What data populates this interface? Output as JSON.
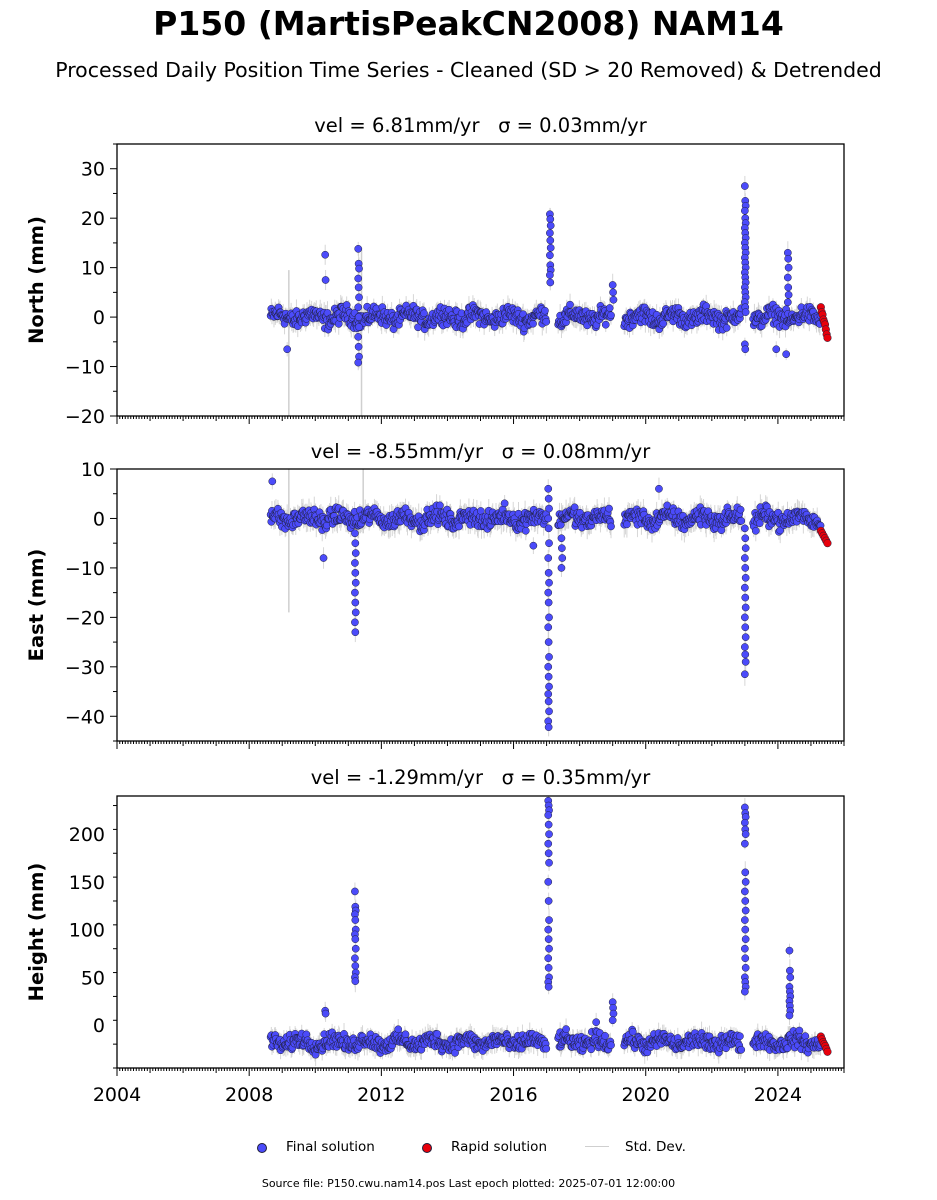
{
  "page": {
    "title": "P150 (MartisPeakCN2008) NAM14",
    "subtitle": "Processed Daily Position Time Series - Cleaned (SD > 20 Removed) & Detrended",
    "source": "Source file: P150.cwu.nam14.pos  Last epoch plotted: 2025-07-01 12:00:00"
  },
  "legend": {
    "final": "Final solution",
    "rapid": "Rapid solution",
    "std": "Std. Dev."
  },
  "colors": {
    "final": "#4b4bfa",
    "rapid": "#e8000b",
    "std": "#cfcfcf",
    "edge": "#1f1f3a"
  },
  "chart_data": [
    {
      "type": "scatter",
      "title": "vel = 6.81mm/yr   σ = 0.03mm/yr",
      "ylabel": "North (mm)",
      "xlim": [
        2004.0,
        2026.0
      ],
      "ylim": [
        -20,
        35
      ],
      "yticks": [
        -20,
        -10,
        0,
        10,
        20,
        30
      ],
      "xticks": [
        2004,
        2008,
        2012,
        2016,
        2020,
        2024
      ],
      "segments": [
        [
          2008.65,
          2017.0
        ],
        [
          2017.35,
          2018.95
        ],
        [
          2019.35,
          2022.9
        ],
        [
          2023.25,
          2025.3
        ]
      ],
      "baseline": 0,
      "noise": 1.5,
      "err": 1.6,
      "events": [
        {
          "x": 2009.15,
          "values": [
            -6.5
          ]
        },
        {
          "x": 2010.3,
          "values": [
            12.6,
            7.5
          ]
        },
        {
          "x": 2011.3,
          "values": [
            13.8,
            10.8,
            9.8,
            7.8,
            6,
            4,
            2,
            0,
            -2,
            -4,
            -6,
            -8,
            -9.2
          ]
        },
        {
          "x": 2017.1,
          "values": [
            20.8,
            19.8,
            18.5,
            17,
            15.5,
            14,
            12.5,
            10.5,
            9.5,
            8.5,
            7
          ]
        },
        {
          "x": 2019.0,
          "values": [
            6.5,
            5,
            3.5
          ]
        },
        {
          "x": 2023.0,
          "values": [
            26.5,
            23.5,
            22.5,
            21.5,
            20,
            19,
            18,
            17,
            16,
            15,
            14,
            13,
            12,
            11,
            10,
            9,
            8,
            7,
            6,
            5,
            4,
            3,
            2,
            1,
            -5.5,
            -6.5
          ]
        },
        {
          "x": 2024.3,
          "values": [
            13,
            11.8,
            10,
            8,
            6,
            4.5,
            3
          ]
        },
        {
          "x": 2023.95,
          "values": [
            -6.5
          ]
        },
        {
          "x": 2024.25,
          "values": [
            -7.5
          ]
        }
      ],
      "err_spikes": [
        {
          "x": 2009.2,
          "y0": -20,
          "y1": 9.5
        },
        {
          "x": 2011.4,
          "y0": -20,
          "y1": 14
        }
      ],
      "rapid": {
        "x0": 2025.3,
        "x1": 2025.5,
        "values": [
          2,
          1,
          0.5,
          -0.5,
          -1,
          -1.5,
          -2.5,
          -3.5,
          -4.2
        ]
      }
    },
    {
      "type": "scatter",
      "title": "vel = -8.55mm/yr   σ = 0.08mm/yr",
      "ylabel": "East (mm)",
      "xlim": [
        2004.0,
        2026.0
      ],
      "ylim": [
        -45,
        10
      ],
      "yticks": [
        -40,
        -30,
        -20,
        -10,
        0,
        10
      ],
      "xticks": [
        2004,
        2008,
        2012,
        2016,
        2020,
        2024
      ],
      "segments": [
        [
          2008.65,
          2017.0
        ],
        [
          2017.35,
          2018.95
        ],
        [
          2019.35,
          2022.9
        ],
        [
          2023.25,
          2025.3
        ]
      ],
      "baseline": 0,
      "noise": 1.5,
      "err": 1.8,
      "events": [
        {
          "x": 2008.7,
          "values": [
            7.5
          ]
        },
        {
          "x": 2011.2,
          "values": [
            -3,
            -5,
            -7,
            -9,
            -11,
            -13,
            -15,
            -17,
            -19,
            -21,
            -23
          ]
        },
        {
          "x": 2017.05,
          "values": [
            6,
            4,
            2,
            0,
            -2,
            -5,
            -8,
            -11,
            -13,
            -15,
            -17,
            -20,
            -22,
            -25,
            -28,
            -30,
            -32,
            -34,
            -35.5,
            -37,
            -39,
            -41,
            -42.2
          ]
        },
        {
          "x": 2017.45,
          "values": [
            -4,
            -6,
            -8,
            -10
          ]
        },
        {
          "x": 2023.0,
          "values": [
            -2,
            -4,
            -6,
            -8,
            -10,
            -12,
            -14,
            -16,
            -18,
            -20,
            -22,
            -24,
            -26,
            -27.5,
            -29,
            -31.5
          ]
        },
        {
          "x": 2016.6,
          "values": [
            -5.5
          ]
        },
        {
          "x": 2020.4,
          "values": [
            6
          ]
        },
        {
          "x": 2010.25,
          "values": [
            -8
          ]
        }
      ],
      "err_spikes": [
        {
          "x": 2009.2,
          "y0": -19,
          "y1": 10
        },
        {
          "x": 2011.45,
          "y0": -3,
          "y1": 10
        }
      ],
      "rapid": {
        "x0": 2025.3,
        "x1": 2025.5,
        "values": [
          -2.5,
          -3,
          -3.5,
          -4,
          -4.5,
          -5
        ]
      }
    },
    {
      "type": "scatter",
      "title": "vel = -1.29mm/yr   σ = 0.35mm/yr",
      "ylabel": "Height (mm)",
      "xlim": [
        2004.0,
        2026.0
      ],
      "ylim": [
        -45,
        240
      ],
      "yticks": [
        0,
        50,
        100,
        150,
        200
      ],
      "xticks": [
        2004,
        2008,
        2012,
        2016,
        2020,
        2024
      ],
      "xticklabels": [
        "2004",
        "2008",
        "2012",
        "2016",
        "2020",
        "2024"
      ],
      "segments": [
        [
          2008.65,
          2017.0
        ],
        [
          2017.35,
          2018.95
        ],
        [
          2019.35,
          2022.9
        ],
        [
          2023.25,
          2025.3
        ]
      ],
      "baseline": -18,
      "noise": 7,
      "err": 8,
      "events": [
        {
          "x": 2011.2,
          "values": [
            140,
            124,
            120,
            116,
            110,
            100,
            95,
            90,
            80,
            70,
            62,
            55,
            50,
            46
          ]
        },
        {
          "x": 2010.3,
          "values": [
            15,
            12
          ]
        },
        {
          "x": 2017.05,
          "values": [
            235,
            230,
            225,
            220,
            210,
            200,
            190,
            180,
            170,
            150,
            130,
            110,
            100,
            90,
            80,
            70,
            60,
            50,
            45,
            40
          ]
        },
        {
          "x": 2019.0,
          "values": [
            24,
            18,
            12,
            5
          ]
        },
        {
          "x": 2023.0,
          "values": [
            228,
            222,
            218,
            212,
            205,
            200,
            190,
            160,
            150,
            140,
            130,
            120,
            110,
            100,
            90,
            80,
            70,
            60,
            50,
            45,
            40,
            35
          ]
        },
        {
          "x": 2024.35,
          "values": [
            78,
            57,
            50,
            40,
            35,
            30,
            25,
            20,
            15,
            10
          ]
        },
        {
          "x": 2018.5,
          "values": [
            3
          ]
        }
      ],
      "err_spikes": [],
      "rapid": {
        "x0": 2025.3,
        "x1": 2025.5,
        "values": [
          -12,
          -15,
          -18,
          -20,
          -22,
          -25,
          -28
        ]
      }
    }
  ]
}
